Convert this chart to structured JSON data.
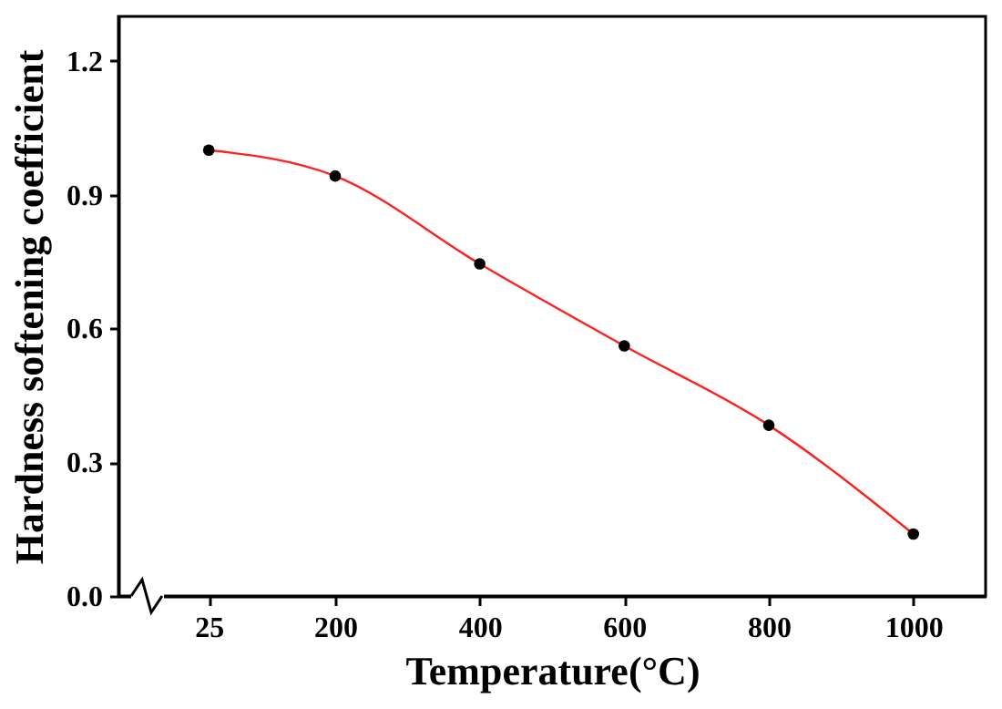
{
  "chart_data": {
    "type": "line",
    "xlabel": "Temperature(°C)",
    "ylabel": "Hardness softening coefficient",
    "x": [
      25,
      200,
      400,
      600,
      800,
      1000
    ],
    "series": [
      {
        "color": "#ff2020",
        "values": [
          1.0,
          0.942,
          0.745,
          0.561,
          0.383,
          0.139
        ],
        "marker": "none"
      },
      {
        "type": "scatter",
        "color": "#000000",
        "values": [
          1.0,
          0.942,
          0.745,
          0.561,
          0.383,
          0.139
        ],
        "marker": "circle"
      }
    ],
    "xlim": [
      -100,
      1100
    ],
    "xticks": [
      25,
      200,
      400,
      600,
      800,
      1000
    ],
    "ylim": [
      0,
      1.3
    ],
    "yticks": [
      {
        "value": 0,
        "label": "0.0"
      },
      {
        "value": 0.3,
        "label": "0.3"
      },
      {
        "value": 0.6,
        "label": "0.6"
      },
      {
        "value": 0.9,
        "label": "0.9"
      },
      {
        "value": 1.2,
        "label": "1.2"
      }
    ],
    "grid": false
  }
}
